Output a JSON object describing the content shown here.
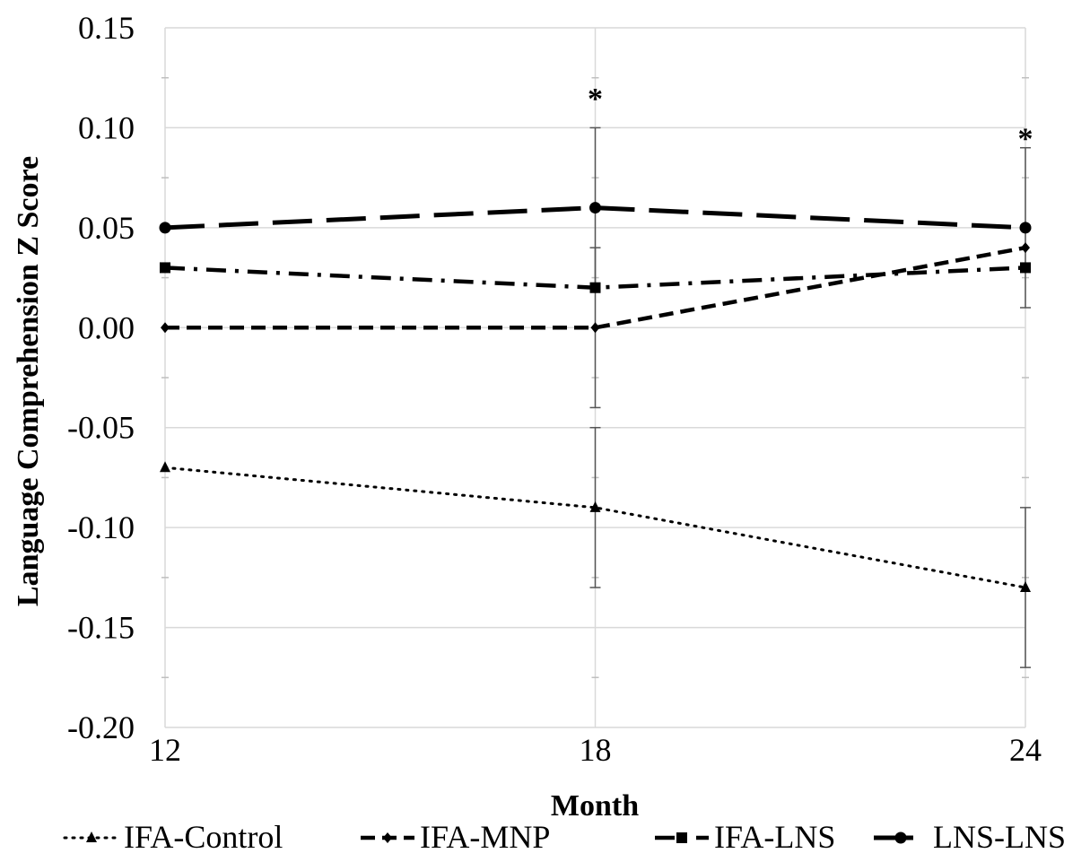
{
  "chart_data": {
    "type": "line",
    "title": "",
    "xlabel": "Month",
    "ylabel": "Language Comprehension Z Score",
    "x": [
      12,
      18,
      24
    ],
    "x_tick_labels": [
      "12",
      "18",
      "24"
    ],
    "ylim": [
      -0.2,
      0.15
    ],
    "y_ticks": [
      0.15,
      0.1,
      0.05,
      0.0,
      -0.05,
      -0.1,
      -0.15,
      -0.2
    ],
    "y_tick_labels": [
      "0.15",
      "0.10",
      "0.05",
      "0.00",
      "-0.05",
      "-0.10",
      "-0.15",
      "-0.20"
    ],
    "grid": true,
    "legend_position": "bottom",
    "series": [
      {
        "name": "IFA-Control",
        "values": [
          -0.07,
          -0.09,
          -0.13
        ],
        "dash": "dotted",
        "marker": "triangle",
        "color": "#000000",
        "errors": [
          null,
          0.04,
          0.04
        ]
      },
      {
        "name": "IFA-MNP",
        "values": [
          0.0,
          0.0,
          0.04
        ],
        "dash": "dashed",
        "marker": "diamond",
        "color": "#000000",
        "errors": [
          null,
          0.04,
          null
        ]
      },
      {
        "name": "IFA-LNS",
        "values": [
          0.03,
          0.02,
          0.03
        ],
        "dash": "dashdot",
        "marker": "square",
        "color": "#000000",
        "errors": [
          null,
          null,
          null
        ]
      },
      {
        "name": "LNS-LNS",
        "values": [
          0.05,
          0.06,
          0.05
        ],
        "dash": "longdash",
        "marker": "circle",
        "color": "#000000",
        "errors": [
          null,
          0.04,
          0.04
        ]
      }
    ],
    "annotations": [
      {
        "text": "*",
        "x": 18,
        "y": 0.115
      },
      {
        "text": "*",
        "x": 24,
        "y": 0.095
      }
    ]
  }
}
